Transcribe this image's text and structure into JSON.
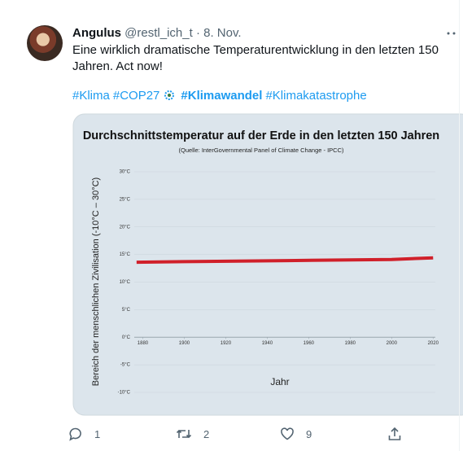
{
  "tweet": {
    "author": "Angulus",
    "handle": "@restl_ich_t",
    "separator": "·",
    "date": "8. Nov.",
    "text": "Eine wirklich dramatische Temperaturentwicklung in den letzten 150 Jahren. Act now!",
    "hashtags": [
      "#Klima",
      "#COP27",
      "#Klimawandel",
      "#Klimakatastrophe"
    ],
    "replies": "1",
    "retweets": "2",
    "likes": "9"
  },
  "chart_data": {
    "type": "line",
    "title": "Durchschnittstemperatur auf der Erde in den letzten 150 Jahren",
    "subtitle": "(Quelle: InterGovernmental Panel of Climate Change - IPCC)",
    "y_label": "Bereich der menschlichen Zivilisation  (-10°C – 30°C)",
    "x_label": "Jahr",
    "x": [
      1877,
      1900,
      1950,
      2000,
      2020
    ],
    "series": [
      {
        "color": "#d0202a",
        "values": [
          13.6,
          13.7,
          13.9,
          14.1,
          14.4
        ]
      }
    ],
    "xlim": [
      1870,
      2025
    ],
    "xticks": [
      1880,
      1900,
      1920,
      1940,
      1960,
      1980,
      2000,
      2020
    ],
    "ylim": [
      -10,
      30
    ],
    "yticks": [
      {
        "value": 30,
        "label": "30°C"
      },
      {
        "value": 25,
        "label": "25°C"
      },
      {
        "value": 20,
        "label": "20°C"
      },
      {
        "value": 15,
        "label": "15°C"
      },
      {
        "value": 10,
        "label": "10°C"
      },
      {
        "value": 5,
        "label": "5°C"
      },
      {
        "value": 0,
        "label": "0°C"
      },
      {
        "value": -5,
        "label": "-5°C"
      },
      {
        "value": -10,
        "label": "-10°C"
      }
    ],
    "grid": true
  }
}
